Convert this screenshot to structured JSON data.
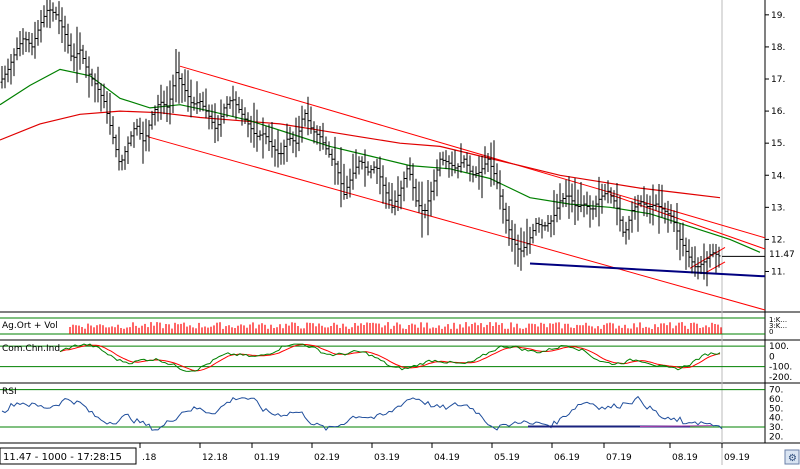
{
  "status_bar": {
    "readout": "11.47 - 1000 - 17:28:15",
    "corner_icon": "chart-settings-icon"
  },
  "chart_data": [
    {
      "type": "line",
      "panel": "price",
      "style": "ohlc-bars",
      "y_ticks": [
        19,
        18,
        17,
        16,
        15,
        14,
        13,
        12,
        11
      ],
      "y_tick_labels": [
        "19.",
        "18.",
        "17.",
        "16.",
        "15.",
        "14.",
        "13.",
        "12.",
        "11."
      ],
      "last_price_label": "11.47",
      "last_price": 11.47,
      "ylim": [
        9.8,
        19.4
      ],
      "x_tick_labels": [
        ".18",
        "12.18",
        "01.19",
        "02.19",
        "03.19",
        "04.19",
        "05.19",
        "06.19",
        "07.19",
        "08.19",
        "09.19"
      ],
      "price_path": [
        [
          0,
          16.9
        ],
        [
          8,
          17.3
        ],
        [
          16,
          17.9
        ],
        [
          24,
          18.3
        ],
        [
          32,
          18.0
        ],
        [
          40,
          18.7
        ],
        [
          48,
          19.2
        ],
        [
          56,
          19.0
        ],
        [
          64,
          18.5
        ],
        [
          72,
          17.6
        ],
        [
          80,
          17.9
        ],
        [
          88,
          17.2
        ],
        [
          96,
          16.8
        ],
        [
          104,
          16.3
        ],
        [
          112,
          15.3
        ],
        [
          120,
          14.3
        ],
        [
          128,
          15.0
        ],
        [
          136,
          15.6
        ],
        [
          144,
          15.0
        ],
        [
          152,
          15.9
        ],
        [
          160,
          16.3
        ],
        [
          168,
          16.1
        ],
        [
          176,
          17.2
        ],
        [
          184,
          16.7
        ],
        [
          192,
          16.2
        ],
        [
          200,
          16.3
        ],
        [
          208,
          15.9
        ],
        [
          216,
          15.4
        ],
        [
          224,
          16.1
        ],
        [
          232,
          16.4
        ],
        [
          240,
          16.0
        ],
        [
          248,
          15.6
        ],
        [
          256,
          15.2
        ],
        [
          264,
          15.3
        ],
        [
          272,
          14.9
        ],
        [
          280,
          14.6
        ],
        [
          288,
          15.2
        ],
        [
          296,
          15.0
        ],
        [
          304,
          16.0
        ],
        [
          312,
          15.4
        ],
        [
          320,
          15.2
        ],
        [
          328,
          14.7
        ],
        [
          336,
          14.3
        ],
        [
          344,
          13.4
        ],
        [
          352,
          14.0
        ],
        [
          360,
          14.5
        ],
        [
          368,
          14.1
        ],
        [
          376,
          14.3
        ],
        [
          384,
          13.6
        ],
        [
          392,
          13.0
        ],
        [
          400,
          13.5
        ],
        [
          408,
          14.3
        ],
        [
          416,
          13.2
        ],
        [
          424,
          12.8
        ],
        [
          432,
          13.6
        ],
        [
          440,
          14.5
        ],
        [
          448,
          14.4
        ],
        [
          456,
          14.2
        ],
        [
          464,
          14.5
        ],
        [
          472,
          14.0
        ],
        [
          480,
          14.1
        ],
        [
          488,
          14.5
        ],
        [
          496,
          13.9
        ],
        [
          504,
          12.8
        ],
        [
          512,
          12.0
        ],
        [
          520,
          11.6
        ],
        [
          528,
          11.9
        ],
        [
          536,
          12.5
        ],
        [
          544,
          12.4
        ],
        [
          552,
          12.6
        ],
        [
          560,
          13.2
        ],
        [
          568,
          13.4
        ],
        [
          576,
          13.0
        ],
        [
          584,
          13.1
        ],
        [
          592,
          12.9
        ],
        [
          600,
          13.3
        ],
        [
          608,
          13.5
        ],
        [
          616,
          13.1
        ],
        [
          624,
          12.1
        ],
        [
          632,
          12.9
        ],
        [
          640,
          13.2
        ],
        [
          648,
          13.0
        ],
        [
          656,
          13.1
        ],
        [
          664,
          12.9
        ],
        [
          672,
          12.7
        ],
        [
          680,
          12.0
        ],
        [
          688,
          11.5
        ],
        [
          696,
          11.1
        ],
        [
          704,
          11.3
        ],
        [
          712,
          11.6
        ],
        [
          720,
          11.47
        ]
      ],
      "ma_green": [
        [
          0,
          16.2
        ],
        [
          30,
          16.8
        ],
        [
          60,
          17.3
        ],
        [
          90,
          17.1
        ],
        [
          120,
          16.4
        ],
        [
          150,
          16.1
        ],
        [
          180,
          16.2
        ],
        [
          210,
          16.0
        ],
        [
          250,
          15.7
        ],
        [
          290,
          15.3
        ],
        [
          330,
          14.9
        ],
        [
          370,
          14.6
        ],
        [
          410,
          14.3
        ],
        [
          450,
          14.2
        ],
        [
          490,
          13.9
        ],
        [
          530,
          13.3
        ],
        [
          570,
          13.1
        ],
        [
          610,
          13.0
        ],
        [
          650,
          12.8
        ],
        [
          690,
          12.4
        ],
        [
          730,
          12.0
        ],
        [
          760,
          11.6
        ]
      ],
      "ma_red": [
        [
          0,
          15.1
        ],
        [
          40,
          15.6
        ],
        [
          80,
          15.9
        ],
        [
          120,
          16.0
        ],
        [
          160,
          15.95
        ],
        [
          200,
          15.8
        ],
        [
          240,
          15.7
        ],
        [
          280,
          15.6
        ],
        [
          320,
          15.4
        ],
        [
          360,
          15.2
        ],
        [
          400,
          15.0
        ],
        [
          440,
          14.9
        ],
        [
          480,
          14.6
        ],
        [
          520,
          14.3
        ],
        [
          560,
          14.0
        ],
        [
          600,
          13.8
        ],
        [
          640,
          13.6
        ],
        [
          680,
          13.45
        ],
        [
          720,
          13.3
        ]
      ],
      "channel_upper": [
        [
          180,
          17.4
        ],
        [
          765,
          12.05
        ]
      ],
      "channel_lower": [
        [
          148,
          15.2
        ],
        [
          765,
          9.8
        ]
      ],
      "channel_small_upper": [
        [
          610,
          13.4
        ],
        [
          765,
          11.7
        ]
      ],
      "support_line": [
        [
          530,
          11.25
        ],
        [
          765,
          10.85
        ]
      ],
      "mini_channel_upper": [
        [
          690,
          11.1
        ],
        [
          725,
          11.75
        ]
      ],
      "mini_channel_lower": [
        [
          705,
          10.95
        ],
        [
          725,
          11.3
        ]
      ]
    },
    {
      "type": "bar",
      "panel": "volume",
      "label": "Ag.Ort + Vol",
      "y_tick_labels": [
        "1:K...",
        "3:K...",
        "0"
      ]
    },
    {
      "type": "line",
      "panel": "oscillator",
      "label": "Com.Chn.Ind",
      "y_ticks": [
        100,
        0,
        -100,
        -200
      ],
      "y_tick_labels": [
        "100.",
        "0",
        "-100.",
        "-200."
      ],
      "ylim": [
        -240,
        140
      ],
      "reference_lines": [
        100,
        -100
      ]
    },
    {
      "type": "line",
      "panel": "rsi",
      "label": "RSI",
      "y_ticks": [
        70,
        60,
        50,
        40,
        30,
        20
      ],
      "y_tick_labels": [
        "70.",
        "60.",
        "50.",
        "40.",
        "30.",
        "20."
      ],
      "ylim": [
        15,
        75
      ],
      "reference_lines": [
        70,
        30
      ]
    }
  ],
  "colors": {
    "price_bar": "#000000",
    "ma_green": "#008000",
    "ma_red": "#e00000",
    "channel": "#ff0000",
    "support": "#000080",
    "volume_bar": "#ff0000",
    "cci_green": "#008000",
    "cci_red": "#ff0000",
    "rsi": "#1f4e9c",
    "panel_ref": "#008000"
  }
}
